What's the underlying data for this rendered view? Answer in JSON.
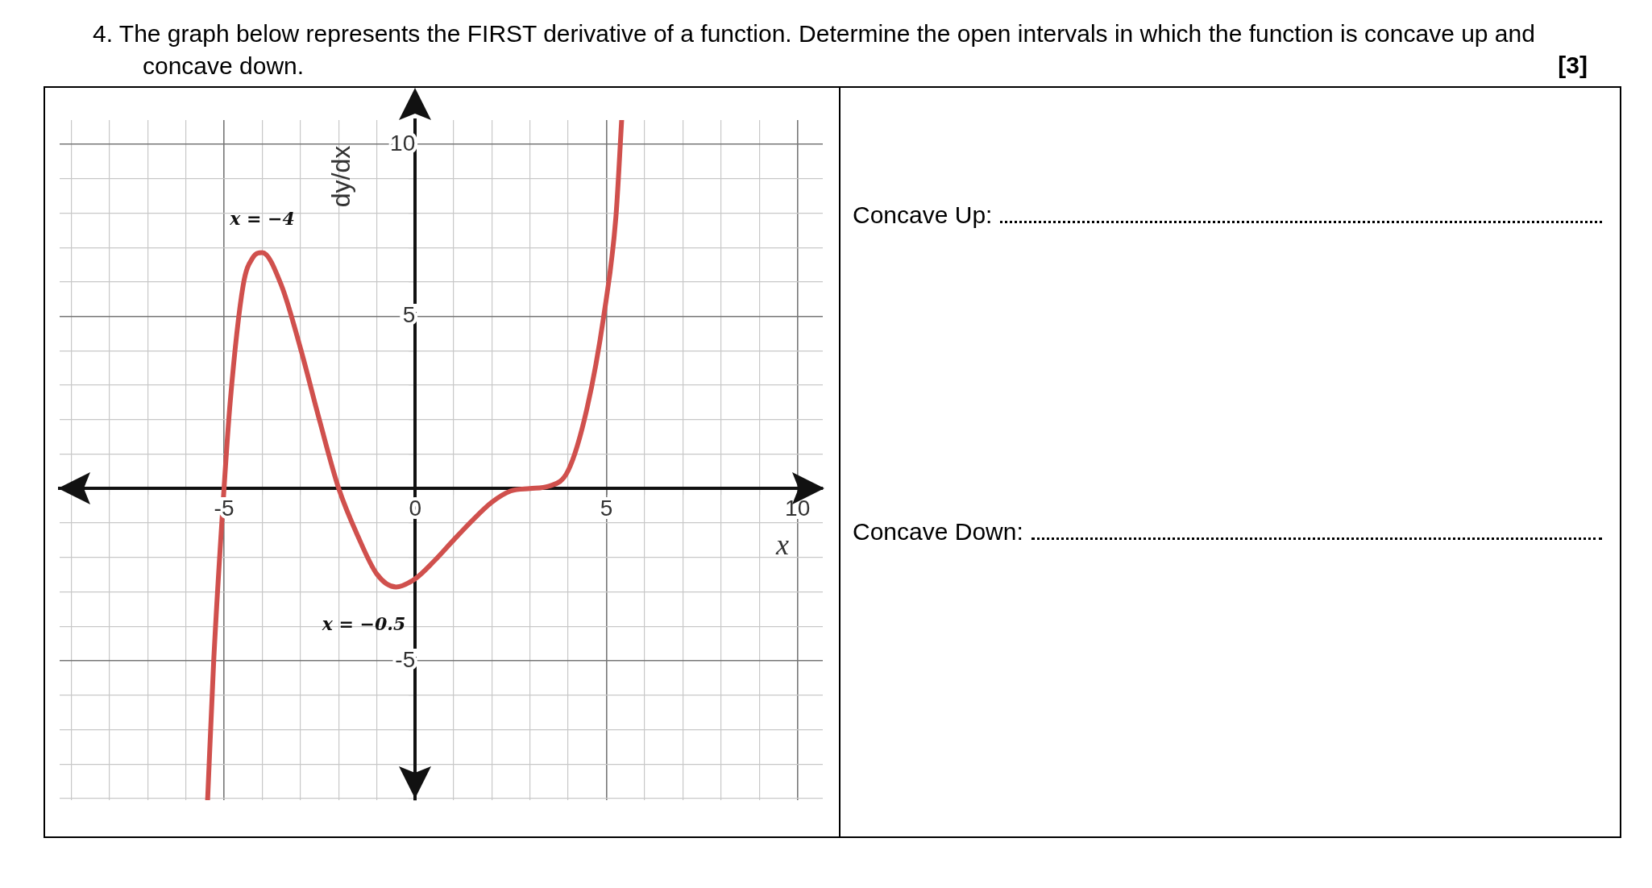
{
  "chart_data": {
    "type": "line",
    "title": "4. The graph below represents the FIRST derivative of a function. Determine the open intervals in which the function is concave up and concave down.",
    "xlabel": "x",
    "ylabel": "dy/dx",
    "series": [
      {
        "color": "#d0504d",
        "x": [
          -5.43,
          -5.27,
          -5,
          -4.84,
          -4.5,
          -4.25,
          -4,
          -3.5,
          -3,
          -2.5,
          -2,
          -1.5,
          -1,
          -0.5,
          0,
          0.5,
          1,
          1.5,
          2,
          2.5,
          3,
          3.5,
          4,
          4.5,
          4.93,
          5.25,
          5.4
        ],
        "values": [
          -9.05,
          -5,
          0,
          2.5,
          5.9,
          6.7,
          6.85,
          5.9,
          4.07,
          1.97,
          0,
          -1.38,
          -2.49,
          -2.86,
          -2.62,
          -2.1,
          -1.5,
          -0.92,
          -0.4,
          -0.07,
          0,
          0.07,
          0.52,
          2.36,
          5,
          7.9,
          10.7
        ]
      }
    ],
    "xlim": [
      -9.3,
      10.66
    ],
    "ylim": [
      -9.05,
      10.7
    ],
    "xticks": [
      {
        "value": -9,
        "label": null
      },
      {
        "value": -8,
        "label": null
      },
      {
        "value": -7,
        "label": null
      },
      {
        "value": -6,
        "label": null
      },
      -5,
      {
        "value": -4,
        "label": null
      },
      {
        "value": -3,
        "label": null
      },
      {
        "value": -2,
        "label": null
      },
      {
        "value": -1,
        "label": null
      },
      0,
      {
        "value": 1,
        "label": null
      },
      {
        "value": 2,
        "label": null
      },
      {
        "value": 3,
        "label": null
      },
      {
        "value": 4,
        "label": null
      },
      5,
      {
        "value": 6,
        "label": null
      },
      {
        "value": 7,
        "label": null
      },
      {
        "value": 8,
        "label": null
      },
      {
        "value": 9,
        "label": null
      },
      10
    ],
    "yticks": [
      {
        "value": -9,
        "label": null
      },
      {
        "value": -8,
        "label": null
      },
      {
        "value": -7,
        "label": null
      },
      {
        "value": -6,
        "label": null
      },
      -5,
      {
        "value": -4,
        "label": null
      },
      {
        "value": -3,
        "label": null
      },
      {
        "value": -2,
        "label": null
      },
      {
        "value": -1,
        "label": null
      },
      {
        "value": 0,
        "label": null
      },
      {
        "value": 1,
        "label": null
      },
      {
        "value": 2,
        "label": null
      },
      {
        "value": 3,
        "label": null
      },
      {
        "value": 4,
        "label": null
      },
      5,
      {
        "value": 6,
        "label": null
      },
      {
        "value": 7,
        "label": null
      },
      {
        "value": 8,
        "label": null
      },
      {
        "value": 9,
        "label": null
      },
      10
    ],
    "grid": true,
    "legend": false,
    "marker": "none",
    "line_style": "solid",
    "annotations": [
      "[3]",
      "Concave Up:",
      "Concave Down:",
      {
        "text": "x = −4",
        "x": -4,
        "y": 6.85
      },
      {
        "text": "x = −0.5",
        "x": -0.5,
        "y": -2.86
      }
    ]
  }
}
